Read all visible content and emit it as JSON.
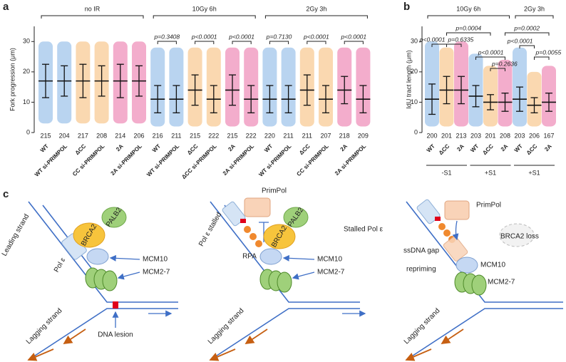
{
  "panels": [
    "a",
    "b",
    "c"
  ],
  "chart_data": [
    {
      "type": "dot",
      "y_label": "Fork progression (μm)",
      "categories": [
        "WT",
        "WT si-PRIMPOL",
        "ΔCC",
        "CC si-PRIMPOL",
        "2A",
        "2A si-PRIMPOL",
        "WT",
        "WT si-PRIMPOL",
        "ΔCC",
        "ΔCC si-PRIMPOL",
        "2A",
        "2A si-PRIMPOL",
        "WT",
        "WT si-PRIMPOL",
        "ΔCC",
        "CC si-PRIMPOL",
        "2A",
        "2A si-PRIMPOL"
      ],
      "colors": [
        "#7fb0e3",
        "#7fb0e3",
        "#f6b870",
        "#f6b870",
        "#ea6aa3",
        "#ea6aa3",
        "#7fb0e3",
        "#7fb0e3",
        "#f6b870",
        "#f6b870",
        "#ea6aa3",
        "#ea6aa3",
        "#7fb0e3",
        "#7fb0e3",
        "#f6b870",
        "#f6b870",
        "#ea6aa3",
        "#ea6aa3"
      ],
      "n": [
        215,
        204,
        217,
        208,
        214,
        206,
        216,
        211,
        215,
        222,
        215,
        222,
        220,
        211,
        211,
        207,
        218,
        209
      ],
      "mean": [
        17,
        17,
        17,
        17,
        17,
        17,
        11,
        11,
        14,
        11,
        14,
        11,
        11,
        11,
        14,
        11,
        14,
        11
      ],
      "sd": [
        5.5,
        5,
        5.5,
        5,
        5.5,
        5,
        4.5,
        4.5,
        5,
        4.5,
        5,
        4.5,
        4.5,
        4.5,
        5,
        4.5,
        4.5,
        4.5
      ],
      "min": [
        3,
        3,
        3,
        3,
        3,
        3,
        2,
        2,
        2,
        2,
        2,
        2,
        2,
        2,
        2,
        2,
        2,
        2
      ],
      "max": [
        30,
        30,
        30,
        30,
        30,
        30,
        28,
        28,
        28,
        28,
        28,
        28,
        28,
        28,
        28,
        28,
        28,
        28
      ],
      "ylim": [
        0,
        35
      ],
      "yticks": [
        0,
        10,
        20,
        30
      ],
      "group_labels": [
        "no IR",
        "10Gy 6h",
        "2Gy 3h"
      ],
      "p_values": [
        "p=0.3408",
        "p<0.0001",
        "p<0.0001",
        "p=0.7130",
        "p<0.0001",
        "p<0.0001"
      ]
    },
    {
      "type": "dot",
      "y_label": "IdU tract length (μm)",
      "categories": [
        "WT",
        "ΔCC",
        "2A",
        "WT",
        "ΔCC",
        "2A",
        "WT",
        "ΔCC",
        "2A"
      ],
      "colors": [
        "#7fb0e3",
        "#f6b870",
        "#ea6aa3",
        "#7fb0e3",
        "#f6b870",
        "#ea6aa3",
        "#7fb0e3",
        "#f6b870",
        "#ea6aa3"
      ],
      "n": [
        200,
        201,
        213,
        203,
        201,
        208,
        203,
        206,
        167
      ],
      "mean": [
        11,
        14,
        14,
        12,
        10,
        10,
        11,
        9,
        10
      ],
      "sd": [
        5,
        4.5,
        4.5,
        3.5,
        2.5,
        3,
        4,
        2.5,
        3
      ],
      "min": [
        2,
        2,
        2,
        2,
        2,
        2,
        2,
        2,
        2
      ],
      "max": [
        30,
        28,
        30,
        26,
        22,
        24,
        28,
        20,
        22
      ],
      "ylim": [
        0,
        35
      ],
      "yticks": [
        0,
        10,
        20,
        30
      ],
      "group_labels": [
        "10Gy 6h",
        "2Gy 3h"
      ],
      "treatments": [
        "-S1",
        "+S1",
        "+S1"
      ],
      "p_values": [
        "p<0.0001",
        "p=0.6335",
        "p=0.0004",
        "p<0.0001",
        "p=0.2636",
        "p=0.0002",
        "p<0.0001",
        "p=0.0055"
      ]
    }
  ],
  "diagram": {
    "steps": [
      {
        "leading_strand": "Leading strand",
        "pol": "Pol ε",
        "brca2": "BRCA2",
        "palb2": "PALB2",
        "mcm10": "MCM10",
        "mcm27": "MCM2-7",
        "lagging": "Lagging strand",
        "lesion": "DNA lesion"
      },
      {
        "primpol": "PrimPol",
        "pol_stalled": "Pol ε stalled",
        "palb2": "PALB2",
        "brca2": "BRCA2",
        "rpa": "RPA",
        "mcm10": "MCM10",
        "mcm27": "MCM2-7",
        "lagging": "Lagging strand"
      },
      {
        "primpol": "PrimPol",
        "stalled_pol": "Stalled Pol ε",
        "brca2_loss": "BRCA2 loss",
        "gap": "ssDNA gap",
        "repriming": "repriming",
        "mcm10": "MCM10",
        "mcm27": "MCM2-7",
        "lagging": "Lagging strand"
      }
    ]
  }
}
